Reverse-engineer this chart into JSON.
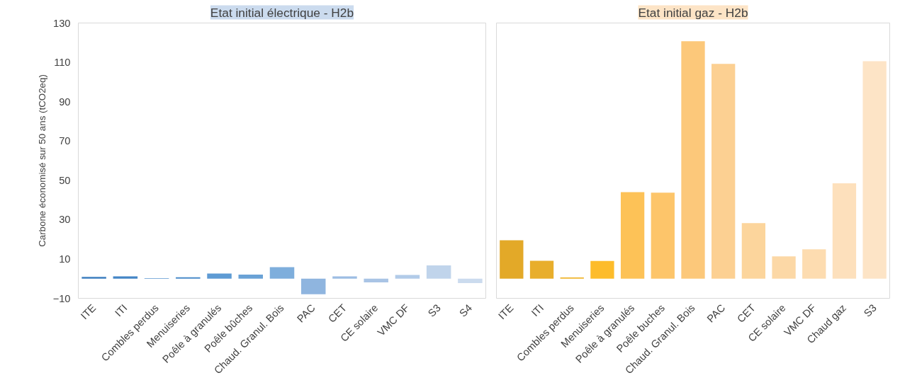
{
  "chart_data": [
    {
      "type": "bar",
      "title": "Etat initial électrique - H2b",
      "ylabel": "Carbone économisé sur 50 ans (tCO2eq)",
      "categories": [
        "ITE",
        "ITI",
        "Combles perdus",
        "Menuiseries",
        "Poêle à granulés",
        "Poêle bûches",
        "Chaud. Granul. Bois",
        "PAC",
        "CET",
        "CE solaire",
        "VMC DF",
        "S3",
        "S4"
      ],
      "values": [
        0.9,
        1.2,
        0.3,
        0.7,
        2.6,
        2.1,
        5.8,
        -7.9,
        1.2,
        -1.9,
        1.9,
        6.7,
        -2.3
      ],
      "colors": [
        "#3d7ebf",
        "#4486c6",
        "#5b96cf",
        "#4a8ac9",
        "#5e9bd4",
        "#6aa2d6",
        "#7eaedc",
        "#8fb5df",
        "#9dbde3",
        "#a9c4e5",
        "#b2cbe8",
        "#c0d4eb",
        "#cbdbee"
      ],
      "ylim": [
        -10,
        130
      ],
      "yticks": [
        -10,
        10,
        30,
        50,
        70,
        90,
        110,
        130
      ]
    },
    {
      "type": "bar",
      "title": "Etat initial gaz - H2b",
      "categories": [
        "ITE",
        "ITI",
        "Combles perdus",
        "Menuiseries",
        "Poêle à granulés",
        "Poêle buches",
        "Chaud. Granul. Bois",
        "PAC",
        "CET",
        "CE solaire",
        "VMC DF",
        "Chaud gaz",
        "S3"
      ],
      "values": [
        19.5,
        9.1,
        0.6,
        9.0,
        44.0,
        43.7,
        120.7,
        109.2,
        28.2,
        11.3,
        14.9,
        48.5,
        110.6
      ],
      "colors": [
        "#e3a928",
        "#e8ae2c",
        "#f0b52e",
        "#fdbc2b",
        "#fdc257",
        "#fdc56a",
        "#fcc87a",
        "#fcd092",
        "#fcd59c",
        "#fcd8a6",
        "#fddcb0",
        "#fde0bc",
        "#fde4c6"
      ],
      "ylim": [
        -10,
        130
      ],
      "yticks": [
        -10,
        10,
        30,
        50,
        70,
        90,
        110,
        130
      ],
      "tick_labels": "x"
    }
  ]
}
